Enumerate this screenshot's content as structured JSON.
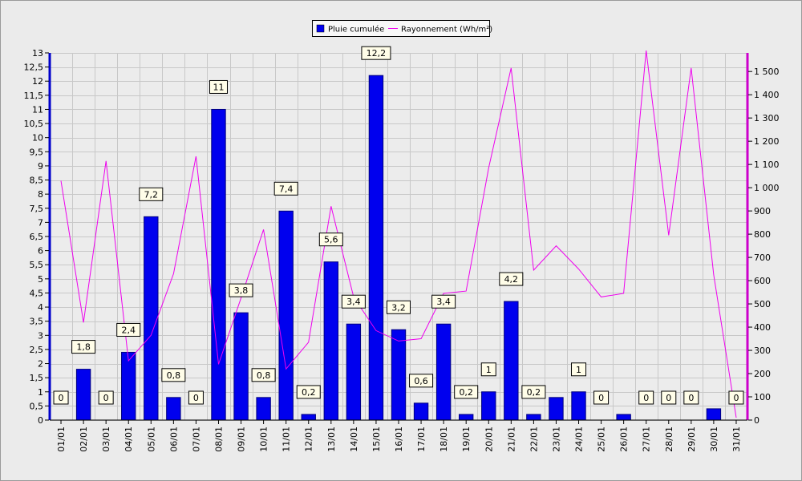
{
  "colors": {
    "background": "#ebebeb",
    "plot_background": "#ececec",
    "grid": "#c8c8c8",
    "bar_fill": "#0000ee",
    "bar_stroke": "#000080",
    "line": "#ee00ee",
    "left_axis": "#0000cc",
    "right_axis": "#cc00cc",
    "label_box_fill": "#fffde8"
  },
  "chart_data": {
    "type": "bar",
    "grid": true,
    "legend_position": "top-center",
    "categories": [
      "01/01",
      "02/01",
      "03/01",
      "04/01",
      "05/01",
      "06/01",
      "07/01",
      "08/01",
      "09/01",
      "10/01",
      "11/01",
      "12/01",
      "13/01",
      "14/01",
      "15/01",
      "16/01",
      "17/01",
      "18/01",
      "19/01",
      "20/01",
      "21/01",
      "22/01",
      "23/01",
      "24/01",
      "25/01",
      "26/01",
      "27/01",
      "28/01",
      "29/01",
      "30/01",
      "31/01"
    ],
    "y_left": {
      "ylim": [
        0,
        13
      ],
      "ticks": [
        "0",
        "0,5",
        "1",
        "1,5",
        "2",
        "2,5",
        "3",
        "3,5",
        "4",
        "4,5",
        "5",
        "5,5",
        "6",
        "6,5",
        "7",
        "7,5",
        "8",
        "8,5",
        "9",
        "9,5",
        "10",
        "10,5",
        "11",
        "11,5",
        "12",
        "12,5",
        "13"
      ]
    },
    "y_right": {
      "ylim": [
        0,
        1580
      ],
      "ticks": [
        "0",
        "100",
        "200",
        "300",
        "400",
        "500",
        "600",
        "700",
        "800",
        "900",
        "1 000",
        "1 100",
        "1 200",
        "1 300",
        "1 400",
        "1 500"
      ]
    },
    "series": [
      {
        "name": "Pluie cumulée",
        "type": "bar",
        "axis": "left",
        "values": [
          0,
          1.8,
          0,
          2.4,
          7.2,
          0.8,
          0,
          11,
          3.8,
          0.8,
          7.4,
          0.2,
          5.6,
          3.4,
          12.2,
          3.2,
          0.6,
          3.4,
          0.2,
          1,
          4.2,
          0.2,
          0.8,
          1,
          0,
          0.2,
          0,
          0,
          0,
          0.4,
          0
        ],
        "data_labels": [
          "0",
          "1,8",
          "0",
          "2,4",
          "7,2",
          "0,8",
          "0",
          "11",
          "3,8",
          "0,8",
          "7,4",
          "0,2",
          "5,6",
          "3,4",
          "12,2",
          "3,2",
          "0,6",
          "3,4",
          "0,2",
          "1",
          "4,2",
          "0,2",
          "",
          "1",
          "0",
          "",
          "0",
          "0",
          "0",
          "",
          "0"
        ]
      },
      {
        "name": "Rayonnement (Wh/m²)",
        "type": "line",
        "axis": "right",
        "values": [
          1030,
          420,
          1115,
          255,
          365,
          630,
          1135,
          240,
          525,
          820,
          220,
          335,
          920,
          530,
          385,
          340,
          350,
          545,
          555,
          1085,
          1515,
          645,
          750,
          650,
          530,
          545,
          1590,
          795,
          1515,
          625,
          10
        ]
      }
    ]
  }
}
